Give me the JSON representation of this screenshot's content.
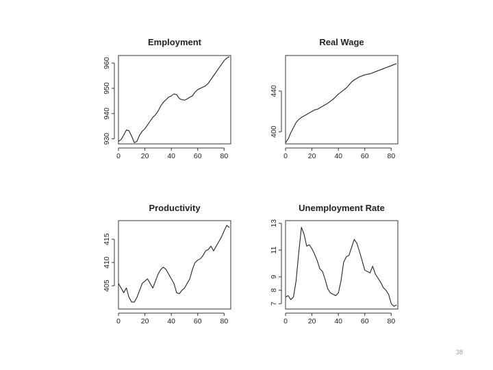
{
  "page": {
    "number": "38"
  },
  "chart_data": [
    {
      "type": "line",
      "title": "Employment",
      "xlabel": "",
      "ylabel": "",
      "xlim": [
        0,
        85
      ],
      "ylim": [
        928,
        963
      ],
      "xticks": [
        0,
        20,
        40,
        60,
        80
      ],
      "yticks": [
        930,
        940,
        950,
        960
      ],
      "grid": false,
      "x": [
        0,
        2,
        4,
        6,
        8,
        10,
        12,
        14,
        16,
        18,
        20,
        22,
        24,
        26,
        28,
        30,
        32,
        34,
        36,
        38,
        40,
        42,
        44,
        46,
        48,
        50,
        52,
        54,
        56,
        58,
        60,
        62,
        64,
        66,
        68,
        70,
        72,
        74,
        76,
        78,
        80,
        82,
        84
      ],
      "series": [
        {
          "values": [
            929,
            929.7,
            931.5,
            933.5,
            933.2,
            931,
            928.5,
            929,
            931.5,
            933,
            934,
            935.5,
            937,
            938.5,
            939.5,
            941,
            943,
            944.5,
            945.5,
            946.5,
            947,
            947.8,
            947.5,
            946,
            945.5,
            945.3,
            945.8,
            946.5,
            947,
            948.5,
            949.5,
            950,
            950.5,
            951,
            952,
            953.5,
            955,
            956.5,
            958,
            959.5,
            961,
            962,
            962.5
          ]
        }
      ]
    },
    {
      "type": "line",
      "title": "Real Wage",
      "xlabel": "",
      "ylabel": "",
      "xlim": [
        0,
        85
      ],
      "ylim": [
        388,
        475
      ],
      "xticks": [
        0,
        20,
        40,
        60,
        80
      ],
      "yticks": [
        400,
        440
      ],
      "grid": false,
      "x": [
        0,
        2,
        4,
        6,
        8,
        10,
        12,
        14,
        16,
        18,
        20,
        22,
        24,
        26,
        28,
        30,
        32,
        34,
        36,
        38,
        40,
        42,
        44,
        46,
        48,
        50,
        52,
        54,
        56,
        58,
        60,
        62,
        64,
        66,
        68,
        70,
        72,
        74,
        76,
        78,
        80,
        82,
        84
      ],
      "series": [
        {
          "values": [
            389,
            393,
            399,
            404,
            409,
            412,
            414,
            415.5,
            417,
            418.5,
            420,
            421.5,
            422,
            423.5,
            425,
            426.5,
            428,
            430,
            432,
            434.5,
            437,
            439,
            441,
            443,
            446,
            449,
            451,
            452.5,
            454,
            455,
            456,
            456.5,
            457,
            458,
            459,
            460,
            461,
            462,
            463,
            464,
            465,
            466,
            467
          ]
        }
      ]
    },
    {
      "type": "line",
      "title": "Productivity",
      "xlabel": "",
      "ylabel": "",
      "xlim": [
        0,
        85
      ],
      "ylim": [
        400,
        419
      ],
      "xticks": [
        0,
        20,
        40,
        60,
        80
      ],
      "yticks": [
        405,
        410,
        415
      ],
      "grid": false,
      "x": [
        0,
        2,
        4,
        6,
        8,
        10,
        12,
        14,
        16,
        18,
        20,
        22,
        24,
        26,
        28,
        30,
        32,
        34,
        36,
        38,
        40,
        42,
        44,
        46,
        48,
        50,
        52,
        54,
        56,
        58,
        60,
        62,
        64,
        66,
        68,
        70,
        72,
        74,
        76,
        78,
        80,
        82,
        84
      ],
      "series": [
        {
          "values": [
            405.5,
            404.5,
            403.5,
            404.5,
            402.5,
            401.5,
            401.5,
            402.5,
            404,
            405.5,
            406,
            406.5,
            405.5,
            404.5,
            406,
            407.5,
            408.5,
            409,
            408.5,
            407.5,
            406.5,
            405.5,
            403.5,
            403.3,
            404,
            404.5,
            405.5,
            406.5,
            408.5,
            410,
            410.5,
            410.8,
            411.5,
            412.5,
            412.8,
            413.5,
            412.5,
            413.5,
            414.5,
            415.5,
            416.8,
            418,
            417.5
          ]
        }
      ]
    },
    {
      "type": "line",
      "title": "Unemployment Rate",
      "xlabel": "",
      "ylabel": "",
      "xlim": [
        0,
        85
      ],
      "ylim": [
        6.6,
        13.2
      ],
      "xticks": [
        0,
        20,
        40,
        60,
        80
      ],
      "yticks": [
        7,
        8,
        9,
        11,
        13
      ],
      "grid": false,
      "x": [
        0,
        2,
        4,
        6,
        8,
        10,
        12,
        14,
        16,
        18,
        20,
        22,
        24,
        26,
        28,
        30,
        32,
        34,
        36,
        38,
        40,
        42,
        44,
        46,
        48,
        50,
        52,
        54,
        56,
        58,
        60,
        62,
        64,
        66,
        68,
        70,
        72,
        74,
        76,
        78,
        80,
        82,
        84
      ],
      "series": [
        {
          "values": [
            7.5,
            7.6,
            7.3,
            7.5,
            8.7,
            10.8,
            12.7,
            12.2,
            11.3,
            11.4,
            11.1,
            10.7,
            10.2,
            9.6,
            9.4,
            8.8,
            8.1,
            7.8,
            7.7,
            7.6,
            7.8,
            8.7,
            10.1,
            10.5,
            10.6,
            11.2,
            11.8,
            11.5,
            10.9,
            10.2,
            9.5,
            9.4,
            9.3,
            9.8,
            9.2,
            8.9,
            8.6,
            8.2,
            8,
            7.7,
            7,
            6.8,
            6.9
          ]
        }
      ]
    }
  ]
}
